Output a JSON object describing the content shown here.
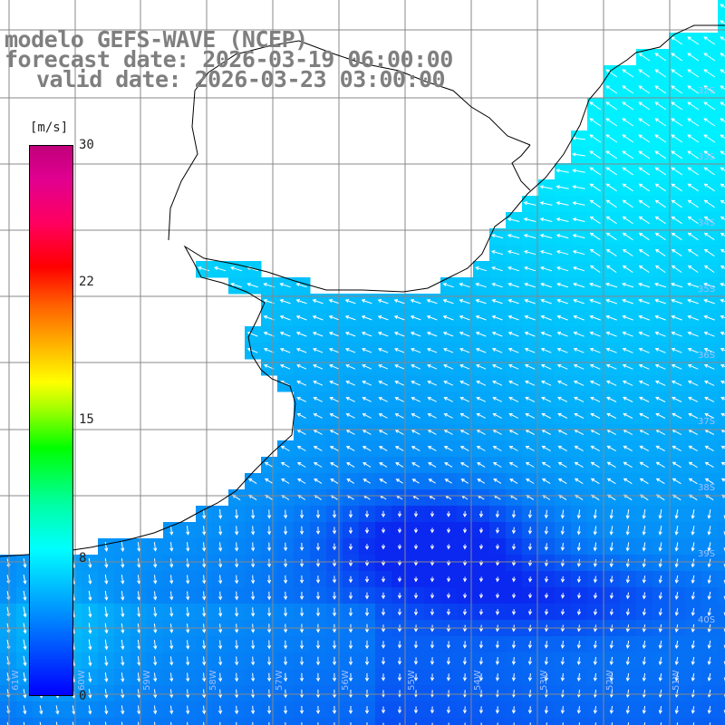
{
  "title": {
    "line1": "modelo GEFS-WAVE (NCEP)",
    "line2": "forecast date: 2026-03-19 06:00:00",
    "line3": "valid date: 2026-03-23 03:00:00"
  },
  "colorbar": {
    "units": "[m/s]",
    "ticks": [
      "30",
      "22",
      "15",
      "8",
      "0"
    ],
    "tick_values": [
      30,
      22,
      15,
      8,
      0
    ]
  },
  "grid_labels": {
    "latitudes": [
      "32S",
      "33S",
      "34S",
      "35S",
      "36S",
      "37S",
      "38S",
      "39S",
      "40S"
    ],
    "longitudes": [
      "61W",
      "60W",
      "59W",
      "58W",
      "57W",
      "56W",
      "55W",
      "54W",
      "53W",
      "52W",
      "51W"
    ]
  },
  "colors": {
    "land": "#ffffff",
    "ocean_low": "#0a28f0",
    "ocean_high": "#00e6ff",
    "arrows": "#ffffff",
    "grid": "#888888",
    "coast": "#000000",
    "title_text": "#7f7f7f"
  }
}
